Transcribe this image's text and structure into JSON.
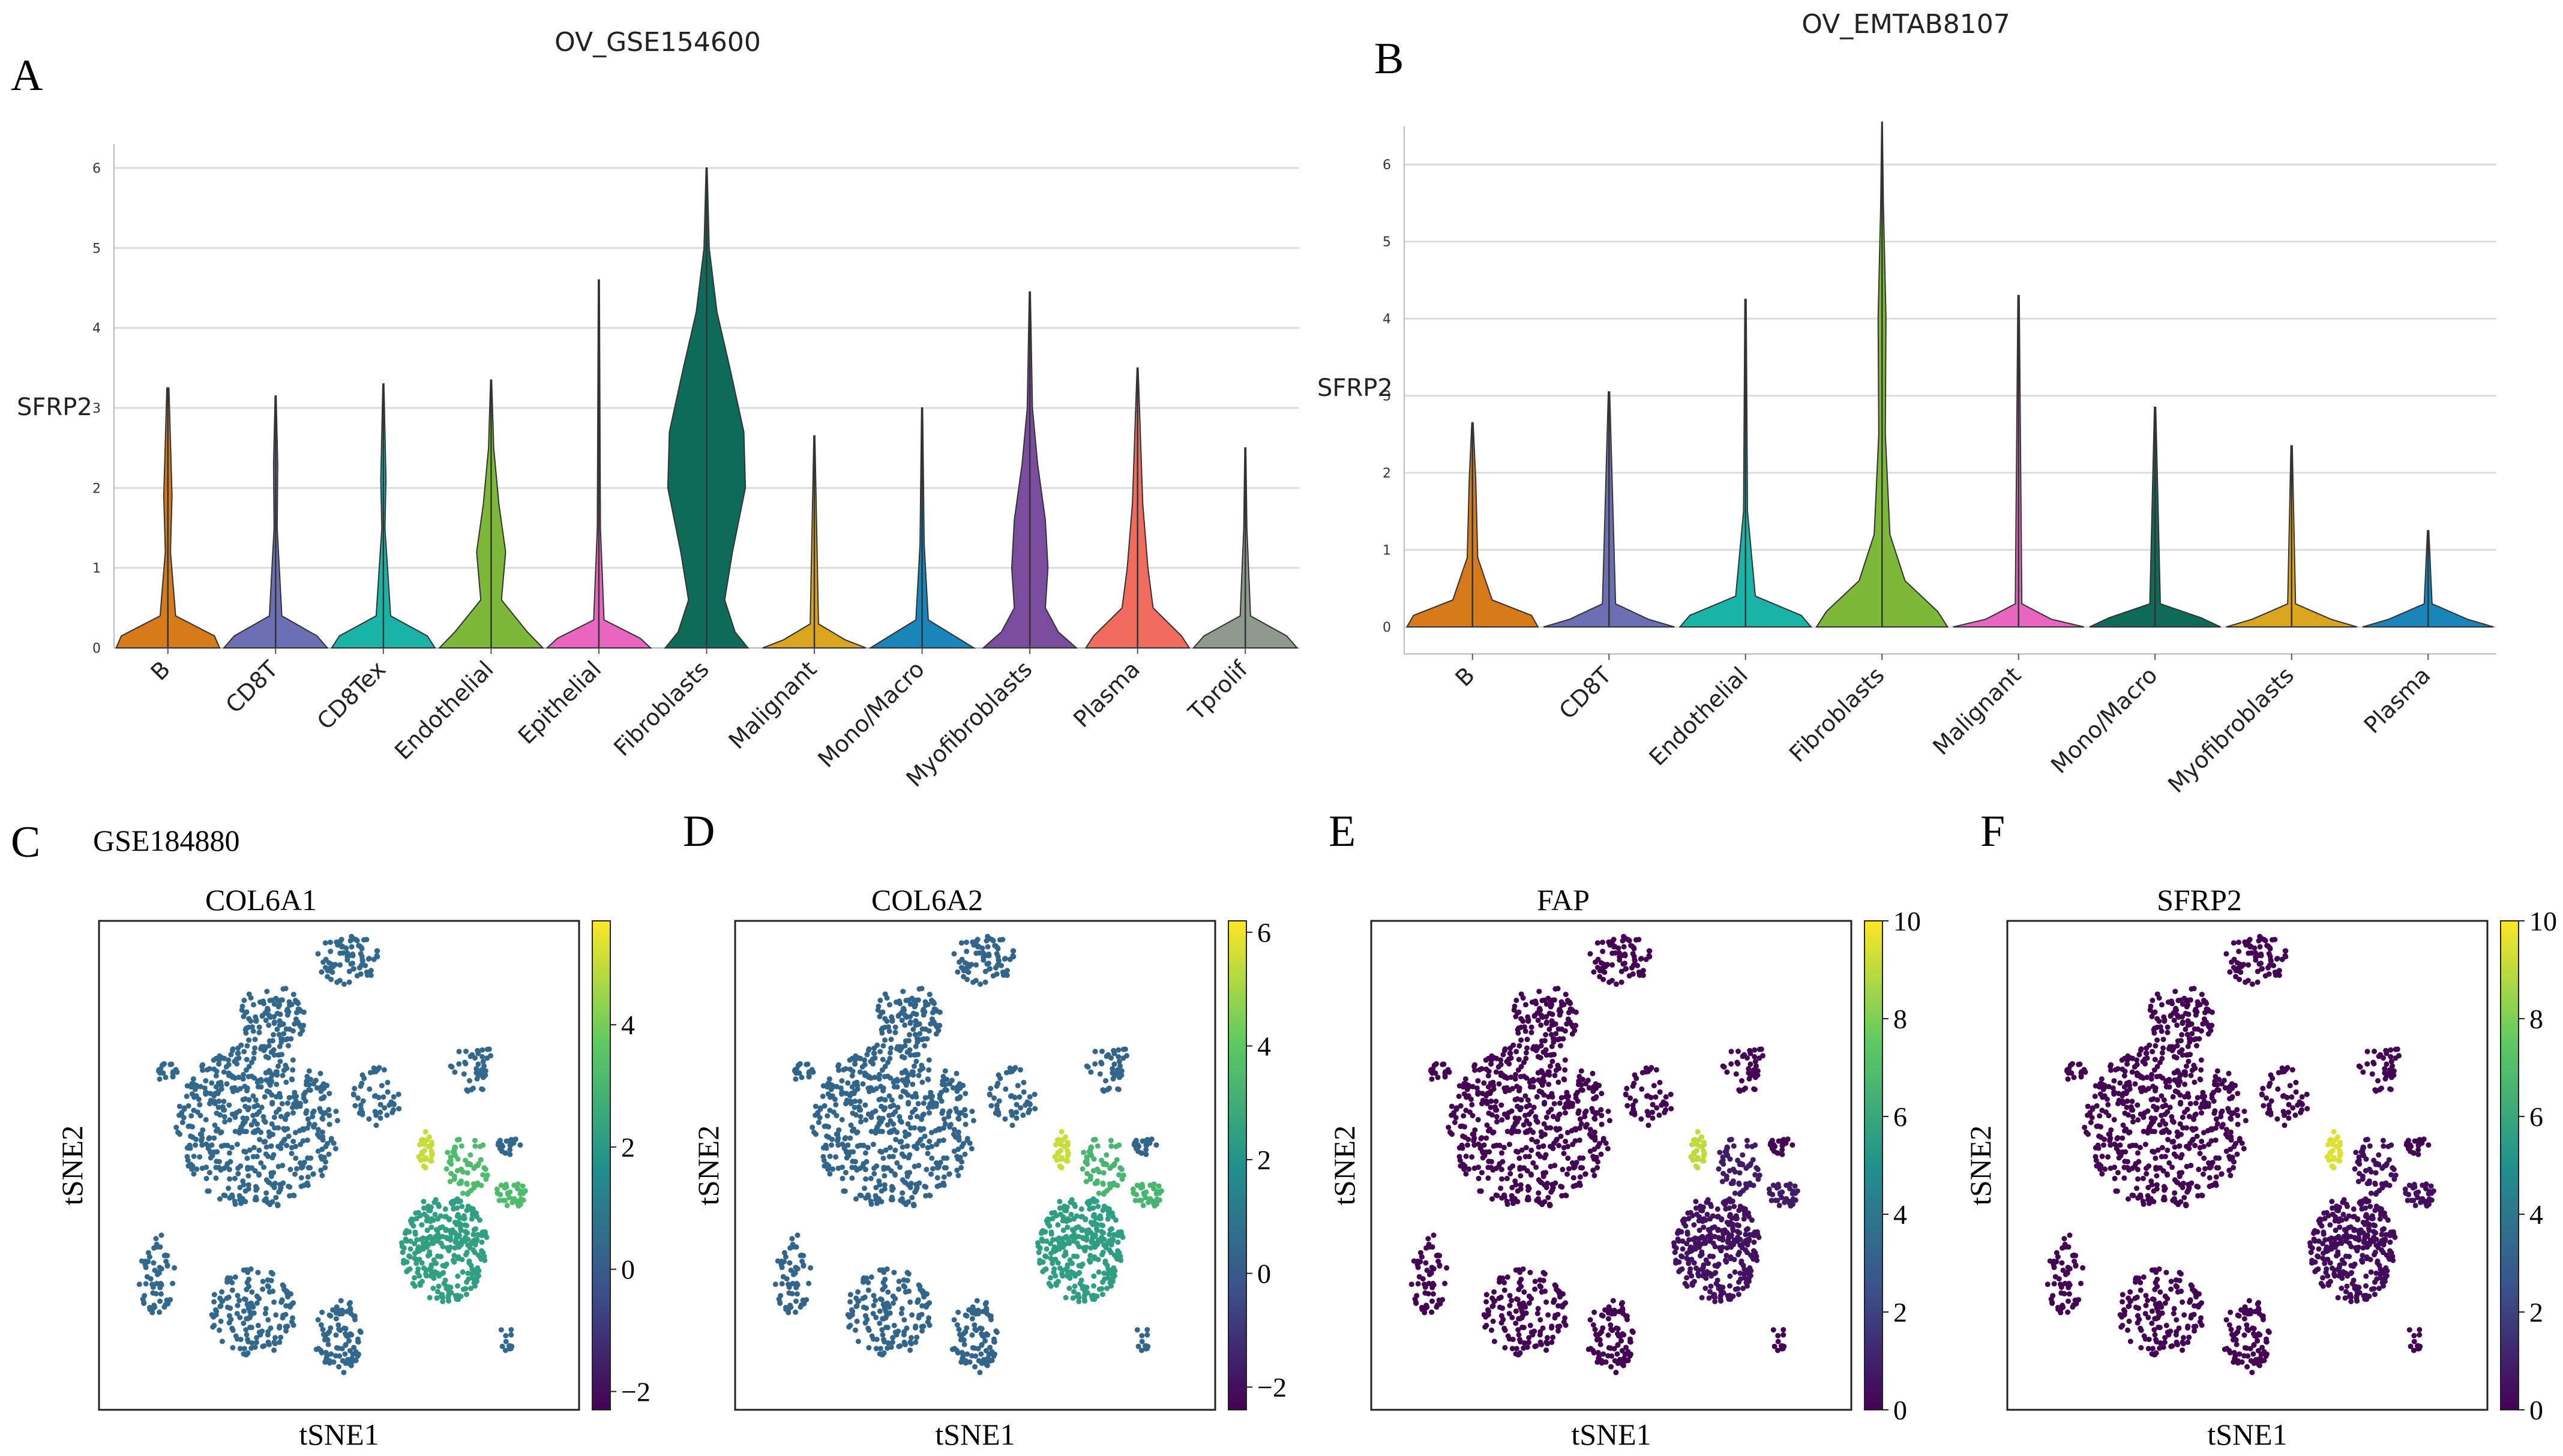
{
  "panels": {
    "A": {
      "letter": "A",
      "title": "OV_GSE154600"
    },
    "B": {
      "letter": "B",
      "title": "OV_EMTAB8107"
    },
    "C": {
      "letter": "C",
      "dataset": "GSE184880",
      "title": "COL6A1"
    },
    "D": {
      "letter": "D",
      "title": "COL6A2"
    },
    "E": {
      "letter": "E",
      "title": "FAP"
    },
    "F": {
      "letter": "F",
      "title": "SFRP2"
    }
  },
  "chart_data": [
    {
      "id": "A",
      "type": "violin",
      "title": "OV_GSE154600",
      "ylabel": "SFRP2",
      "ylim": [
        0,
        6.3
      ],
      "yticks": [
        0,
        1,
        2,
        3,
        4,
        5,
        6
      ],
      "grid": true,
      "categories": [
        "B",
        "CD8T",
        "CD8Tex",
        "Endothelial",
        "Epithelial",
        "Fibroblasts",
        "Malignant",
        "Mono/Macro",
        "Myofibroblasts",
        "Plasma",
        "Tprolif"
      ],
      "colors": [
        "#d67a1a",
        "#6c6fb3",
        "#1ab3a6",
        "#7db83a",
        "#e866c0",
        "#0d6b57",
        "#d9a520",
        "#1a85b8",
        "#7a4d9e",
        "#f26b5f",
        "#8f9a8e"
      ],
      "max": [
        3.25,
        3.15,
        3.3,
        3.35,
        4.6,
        6.0,
        2.65,
        3.0,
        4.45,
        3.5,
        2.5
      ],
      "shapes": [
        [
          [
            0,
            1
          ],
          [
            0.15,
            0.9
          ],
          [
            0.4,
            0.15
          ],
          [
            1.2,
            0.05
          ],
          [
            1.9,
            0.08
          ],
          [
            3.25,
            0.02
          ]
        ],
        [
          [
            0,
            1
          ],
          [
            0.15,
            0.8
          ],
          [
            0.4,
            0.12
          ],
          [
            1.5,
            0.03
          ],
          [
            2.3,
            0.04
          ],
          [
            3.15,
            0.01
          ]
        ],
        [
          [
            0,
            1
          ],
          [
            0.15,
            0.85
          ],
          [
            0.4,
            0.14
          ],
          [
            1.5,
            0.03
          ],
          [
            2.1,
            0.05
          ],
          [
            3.3,
            0.01
          ]
        ],
        [
          [
            0,
            1
          ],
          [
            0.2,
            0.7
          ],
          [
            0.6,
            0.2
          ],
          [
            1.2,
            0.28
          ],
          [
            1.8,
            0.15
          ],
          [
            2.5,
            0.05
          ],
          [
            3.35,
            0.01
          ]
        ],
        [
          [
            0,
            1
          ],
          [
            0.12,
            0.8
          ],
          [
            0.35,
            0.1
          ],
          [
            1.5,
            0.03
          ],
          [
            4.6,
            0.01
          ]
        ],
        [
          [
            0,
            0.8
          ],
          [
            0.2,
            0.55
          ],
          [
            0.6,
            0.35
          ],
          [
            1.2,
            0.5
          ],
          [
            2.0,
            0.75
          ],
          [
            2.7,
            0.72
          ],
          [
            3.5,
            0.45
          ],
          [
            4.2,
            0.2
          ],
          [
            5.0,
            0.05
          ],
          [
            6.0,
            0.01
          ]
        ],
        [
          [
            0,
            1
          ],
          [
            0.1,
            0.6
          ],
          [
            0.3,
            0.08
          ],
          [
            2.65,
            0.01
          ]
        ],
        [
          [
            0,
            1
          ],
          [
            0.12,
            0.7
          ],
          [
            0.35,
            0.12
          ],
          [
            1.3,
            0.04
          ],
          [
            3.0,
            0.01
          ]
        ],
        [
          [
            0,
            0.9
          ],
          [
            0.2,
            0.55
          ],
          [
            0.5,
            0.3
          ],
          [
            1.0,
            0.35
          ],
          [
            1.6,
            0.3
          ],
          [
            2.3,
            0.15
          ],
          [
            3.0,
            0.05
          ],
          [
            4.45,
            0.01
          ]
        ],
        [
          [
            0,
            1
          ],
          [
            0.15,
            0.85
          ],
          [
            0.5,
            0.3
          ],
          [
            1.0,
            0.2
          ],
          [
            1.8,
            0.1
          ],
          [
            3.5,
            0.01
          ]
        ],
        [
          [
            0,
            1
          ],
          [
            0.15,
            0.8
          ],
          [
            0.4,
            0.1
          ],
          [
            1.5,
            0.03
          ],
          [
            2.5,
            0.01
          ]
        ]
      ]
    },
    {
      "id": "B",
      "type": "violin",
      "title": "OV_EMTAB8107",
      "ylabel": "SFRP2",
      "ylim": [
        -0.35,
        6.5
      ],
      "yticks": [
        0,
        1,
        2,
        3,
        4,
        5,
        6
      ],
      "grid": true,
      "categories": [
        "B",
        "CD8T",
        "Endothelial",
        "Fibroblasts",
        "Malignant",
        "Mono/Macro",
        "Myofibroblasts",
        "Plasma"
      ],
      "colors": [
        "#d67a1a",
        "#6c6fb3",
        "#1ab3a6",
        "#7db83a",
        "#e866c0",
        "#0d6b57",
        "#d9a520",
        "#1a85b8"
      ],
      "max": [
        2.65,
        3.05,
        4.25,
        6.55,
        4.3,
        2.85,
        2.35,
        1.25
      ],
      "shapes": [
        [
          [
            0,
            1
          ],
          [
            0.15,
            0.9
          ],
          [
            0.35,
            0.3
          ],
          [
            0.9,
            0.08
          ],
          [
            1.9,
            0.05
          ],
          [
            2.65,
            0.01
          ]
        ],
        [
          [
            0,
            1
          ],
          [
            0.1,
            0.6
          ],
          [
            0.3,
            0.1
          ],
          [
            3.05,
            0.01
          ]
        ],
        [
          [
            0,
            1
          ],
          [
            0.15,
            0.85
          ],
          [
            0.4,
            0.15
          ],
          [
            1.5,
            0.03
          ],
          [
            4.25,
            0.01
          ]
        ],
        [
          [
            0,
            1
          ],
          [
            0.2,
            0.85
          ],
          [
            0.6,
            0.35
          ],
          [
            1.2,
            0.12
          ],
          [
            2.5,
            0.05
          ],
          [
            4.0,
            0.06
          ],
          [
            5.5,
            0.02
          ],
          [
            6.55,
            0.005
          ]
        ],
        [
          [
            0,
            1
          ],
          [
            0.1,
            0.5
          ],
          [
            0.3,
            0.05
          ],
          [
            4.3,
            0.01
          ]
        ],
        [
          [
            0,
            1
          ],
          [
            0.12,
            0.7
          ],
          [
            0.3,
            0.08
          ],
          [
            2.85,
            0.01
          ]
        ],
        [
          [
            0,
            1
          ],
          [
            0.1,
            0.6
          ],
          [
            0.3,
            0.06
          ],
          [
            2.35,
            0.01
          ]
        ],
        [
          [
            0,
            1
          ],
          [
            0.1,
            0.6
          ],
          [
            0.3,
            0.06
          ],
          [
            1.25,
            0.01
          ]
        ]
      ]
    },
    {
      "id": "C",
      "type": "scatter",
      "subtype": "tSNE feature plot",
      "title": "COL6A1",
      "xlabel": "tSNE1",
      "ylabel": "tSNE2",
      "colorbar": {
        "ticks": [
          -2,
          0,
          2,
          4
        ],
        "range": [
          -2.3,
          5.7
        ]
      },
      "cluster_values": {
        "fibroblast_cluster": 5.0,
        "fibro_large_round": 2.2,
        "right_group": 3.2,
        "other_cells": 0.4
      }
    },
    {
      "id": "D",
      "type": "scatter",
      "subtype": "tSNE feature plot",
      "title": "COL6A2",
      "xlabel": "tSNE1",
      "ylabel": "tSNE2",
      "colorbar": {
        "ticks": [
          -2,
          0,
          2,
          4,
          6
        ],
        "range": [
          -2.4,
          6.2
        ]
      },
      "cluster_values": {
        "fibroblast_cluster": 5.5,
        "fibro_large_round": 2.4,
        "right_group": 3.3,
        "other_cells": 0.4
      }
    },
    {
      "id": "E",
      "type": "scatter",
      "subtype": "tSNE feature plot",
      "title": "FAP",
      "xlabel": "tSNE1",
      "ylabel": "tSNE2",
      "colorbar": {
        "ticks": [
          0,
          2,
          4,
          6,
          8,
          10
        ],
        "range": [
          0,
          10
        ]
      },
      "cluster_values": {
        "fibroblast_cluster": 9.0,
        "fibro_large_round": 0.5,
        "right_group": 0.8,
        "other_cells": 0.0
      }
    },
    {
      "id": "F",
      "type": "scatter",
      "subtype": "tSNE feature plot",
      "title": "SFRP2",
      "xlabel": "tSNE1",
      "ylabel": "tSNE2",
      "colorbar": {
        "ticks": [
          0,
          2,
          4,
          6,
          8,
          10
        ],
        "range": [
          0,
          10
        ]
      },
      "cluster_values": {
        "fibroblast_cluster": 9.5,
        "fibro_large_round": 0.3,
        "right_group": 0.4,
        "other_cells": 0.0
      }
    }
  ]
}
